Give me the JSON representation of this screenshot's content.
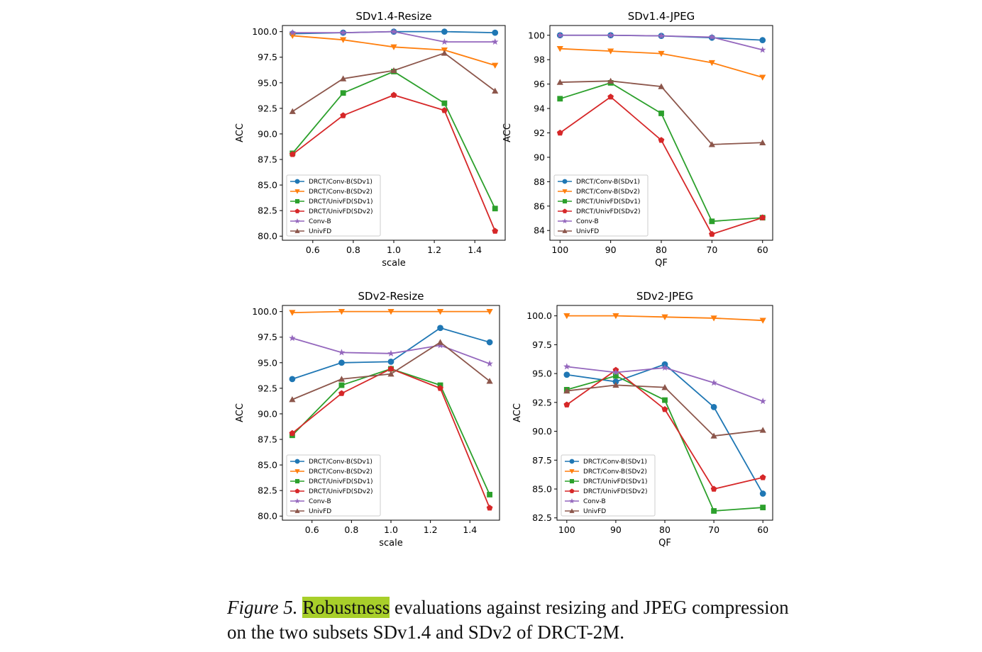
{
  "colors": {
    "DRCT/Conv-B(SDv1)": "#1f77b4",
    "DRCT/Conv-B(SDv2)": "#ff7f0e",
    "DRCT/UnivFD(SDv1)": "#2ca02c",
    "DRCT/UnivFD(SDv2)": "#d62728",
    "Conv-B": "#9467bd",
    "UnivFD": "#8c564b"
  },
  "markers": {
    "DRCT/Conv-B(SDv1)": "circle",
    "DRCT/Conv-B(SDv2)": "triangle-down",
    "DRCT/UnivFD(SDv1)": "square",
    "DRCT/UnivFD(SDv2)": "pentagon",
    "Conv-B": "star",
    "UnivFD": "triangle-up"
  },
  "chart_data": [
    {
      "type": "line",
      "title": "SDv1.4-Resize",
      "xlabel": "scale",
      "ylabel": "ACC",
      "x": [
        0.5,
        0.75,
        1.0,
        1.25,
        1.5
      ],
      "xlim": [
        0.45,
        1.55
      ],
      "xticks": [
        0.6,
        0.8,
        1.0,
        1.2,
        1.4
      ],
      "xtick_labels": [
        "0.6",
        "0.8",
        "1.0",
        "1.2",
        "1.4"
      ],
      "ylim": [
        79.6,
        100.6
      ],
      "yticks": [
        80.0,
        82.5,
        85.0,
        87.5,
        90.0,
        92.5,
        95.0,
        97.5,
        100.0
      ],
      "ytick_labels": [
        "80.0",
        "82.5",
        "85.0",
        "87.5",
        "90.0",
        "92.5",
        "95.0",
        "97.5",
        "100.0"
      ],
      "legend": "lower-left",
      "series": [
        {
          "name": "DRCT/Conv-B(SDv1)",
          "values": [
            99.8,
            99.9,
            100.0,
            100.0,
            99.9
          ]
        },
        {
          "name": "DRCT/Conv-B(SDv2)",
          "values": [
            99.6,
            99.2,
            98.5,
            98.2,
            96.7
          ]
        },
        {
          "name": "DRCT/UnivFD(SDv1)",
          "values": [
            88.1,
            94.0,
            96.1,
            93.0,
            82.7
          ]
        },
        {
          "name": "DRCT/UnivFD(SDv2)",
          "values": [
            88.0,
            91.8,
            93.8,
            92.3,
            80.5
          ]
        },
        {
          "name": "Conv-B",
          "values": [
            99.9,
            99.9,
            100.0,
            99.0,
            99.0
          ]
        },
        {
          "name": "UnivFD",
          "values": [
            92.2,
            95.4,
            96.2,
            97.9,
            94.2
          ]
        }
      ]
    },
    {
      "type": "line",
      "title": "SDv1.4-JPEG",
      "xlabel": "QF",
      "ylabel": "ACC",
      "x": [
        100,
        90,
        80,
        70,
        60
      ],
      "xlim": [
        102,
        58
      ],
      "xticks": [
        100,
        90,
        80,
        70,
        60
      ],
      "xtick_labels": [
        "100",
        "90",
        "80",
        "70",
        "60"
      ],
      "ylim": [
        83.2,
        100.8
      ],
      "yticks": [
        84,
        86,
        88,
        90,
        92,
        94,
        96,
        98,
        100
      ],
      "ytick_labels": [
        "84",
        "86",
        "88",
        "90",
        "92",
        "94",
        "96",
        "98",
        "100"
      ],
      "legend": "lower-left",
      "series": [
        {
          "name": "DRCT/Conv-B(SDv1)",
          "values": [
            100.0,
            100.0,
            99.95,
            99.8,
            99.6
          ]
        },
        {
          "name": "DRCT/Conv-B(SDv2)",
          "values": [
            98.9,
            98.7,
            98.5,
            97.75,
            96.55
          ]
        },
        {
          "name": "DRCT/UnivFD(SDv1)",
          "values": [
            94.8,
            96.1,
            93.6,
            84.75,
            85.05
          ]
        },
        {
          "name": "DRCT/UnivFD(SDv2)",
          "values": [
            92.0,
            94.95,
            91.4,
            83.7,
            85.05
          ]
        },
        {
          "name": "Conv-B",
          "values": [
            100.0,
            100.0,
            99.95,
            99.85,
            98.8
          ]
        },
        {
          "name": "UnivFD",
          "values": [
            96.15,
            96.25,
            95.8,
            91.05,
            91.2
          ]
        }
      ]
    },
    {
      "type": "line",
      "title": "SDv2-Resize",
      "xlabel": "scale",
      "ylabel": "ACC",
      "x": [
        0.5,
        0.75,
        1.0,
        1.25,
        1.5
      ],
      "xlim": [
        0.45,
        1.55
      ],
      "xticks": [
        0.6,
        0.8,
        1.0,
        1.2,
        1.4
      ],
      "xtick_labels": [
        "0.6",
        "0.8",
        "1.0",
        "1.2",
        "1.4"
      ],
      "ylim": [
        79.6,
        100.6
      ],
      "yticks": [
        80.0,
        82.5,
        85.0,
        87.5,
        90.0,
        92.5,
        95.0,
        97.5,
        100.0
      ],
      "ytick_labels": [
        "80.0",
        "82.5",
        "85.0",
        "87.5",
        "90.0",
        "92.5",
        "95.0",
        "97.5",
        "100.0"
      ],
      "legend": "lower-left",
      "series": [
        {
          "name": "DRCT/Conv-B(SDv1)",
          "values": [
            93.4,
            95.0,
            95.1,
            98.4,
            97.0
          ]
        },
        {
          "name": "DRCT/Conv-B(SDv2)",
          "values": [
            99.9,
            100.0,
            100.0,
            100.0,
            100.0
          ]
        },
        {
          "name": "DRCT/UnivFD(SDv1)",
          "values": [
            87.9,
            92.8,
            94.4,
            92.8,
            82.1
          ]
        },
        {
          "name": "DRCT/UnivFD(SDv2)",
          "values": [
            88.1,
            92.0,
            94.4,
            92.5,
            80.8
          ]
        },
        {
          "name": "Conv-B",
          "values": [
            97.4,
            96.0,
            95.9,
            96.7,
            94.9
          ]
        },
        {
          "name": "UnivFD",
          "values": [
            91.4,
            93.4,
            93.9,
            97.0,
            93.2
          ]
        }
      ]
    },
    {
      "type": "line",
      "title": "SDv2-JPEG",
      "xlabel": "QF",
      "ylabel": "ACC",
      "x": [
        100,
        90,
        80,
        70,
        60
      ],
      "xlim": [
        102,
        58
      ],
      "xticks": [
        100,
        90,
        80,
        70,
        60
      ],
      "xtick_labels": [
        "100",
        "90",
        "80",
        "70",
        "60"
      ],
      "ylim": [
        82.3,
        100.9
      ],
      "yticks": [
        82.5,
        85.0,
        87.5,
        90.0,
        92.5,
        95.0,
        97.5,
        100.0
      ],
      "ytick_labels": [
        "82.5",
        "85.0",
        "87.5",
        "90.0",
        "92.5",
        "95.0",
        "97.5",
        "100.0"
      ],
      "legend": "lower-left",
      "series": [
        {
          "name": "DRCT/Conv-B(SDv1)",
          "values": [
            94.9,
            94.3,
            95.8,
            92.1,
            84.6
          ]
        },
        {
          "name": "DRCT/Conv-B(SDv2)",
          "values": [
            100.0,
            100.0,
            99.9,
            99.8,
            99.6
          ]
        },
        {
          "name": "DRCT/UnivFD(SDv1)",
          "values": [
            93.6,
            94.8,
            92.7,
            83.1,
            83.4
          ]
        },
        {
          "name": "DRCT/UnivFD(SDv2)",
          "values": [
            92.3,
            95.3,
            91.9,
            85.0,
            86.0
          ]
        },
        {
          "name": "Conv-B",
          "values": [
            95.6,
            95.1,
            95.5,
            94.2,
            92.6
          ]
        },
        {
          "name": "UnivFD",
          "values": [
            93.5,
            94.0,
            93.8,
            89.6,
            90.1
          ]
        }
      ]
    }
  ],
  "caption": {
    "label": "Figure 5.",
    "highlight": "Robustness",
    "text": "evaluations against resizing and JPEG compression on the two subsets SDv1.4 and SDv2 of DRCT-2M."
  }
}
